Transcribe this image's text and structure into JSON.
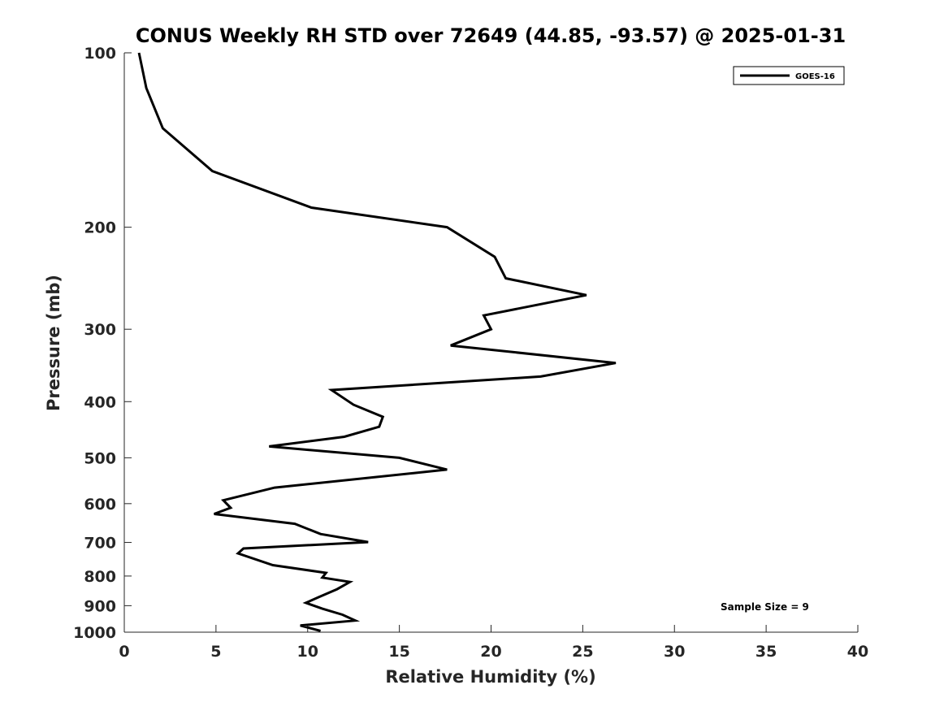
{
  "chart_data": {
    "type": "line",
    "title": "CONUS Weekly RH STD over 72649 (44.85, -93.57) @ 2025-01-31",
    "xlabel": "Relative Humidity (%)",
    "ylabel": "Pressure (mb)",
    "xlim": [
      0,
      40
    ],
    "ylim": [
      100,
      1000
    ],
    "yscale": "log",
    "y_reversed": true,
    "xticks": [
      0,
      5,
      10,
      15,
      20,
      25,
      30,
      35,
      40
    ],
    "yticks": [
      100,
      200,
      300,
      400,
      500,
      600,
      700,
      800,
      900,
      1000
    ],
    "grid": false,
    "legend": {
      "location": "top-right",
      "entries": [
        "GOES-16"
      ]
    },
    "annotation": "Sample Size = 9",
    "series": [
      {
        "name": "GOES-16",
        "color": "#000000",
        "points": [
          [
            0.8,
            100
          ],
          [
            1.2,
            115
          ],
          [
            2.1,
            135
          ],
          [
            4.8,
            160
          ],
          [
            10.2,
            185
          ],
          [
            17.6,
            200
          ],
          [
            20.2,
            225
          ],
          [
            20.8,
            245
          ],
          [
            25.2,
            262
          ],
          [
            19.6,
            284
          ],
          [
            20.0,
            300
          ],
          [
            17.8,
            320
          ],
          [
            26.8,
            343
          ],
          [
            22.7,
            362
          ],
          [
            11.3,
            382
          ],
          [
            12.5,
            405
          ],
          [
            14.1,
            425
          ],
          [
            13.9,
            442
          ],
          [
            12.0,
            460
          ],
          [
            7.9,
            478
          ],
          [
            15.0,
            500
          ],
          [
            17.6,
            524
          ],
          [
            8.2,
            563
          ],
          [
            5.4,
            592
          ],
          [
            5.8,
            610
          ],
          [
            4.9,
            625
          ],
          [
            9.3,
            650
          ],
          [
            10.7,
            677
          ],
          [
            13.3,
            699
          ],
          [
            6.5,
            717
          ],
          [
            6.2,
            731
          ],
          [
            8.1,
            766
          ],
          [
            11.0,
            790
          ],
          [
            10.8,
            805
          ],
          [
            12.3,
            819
          ],
          [
            11.6,
            843
          ],
          [
            10.6,
            870
          ],
          [
            9.9,
            890
          ],
          [
            10.8,
            911
          ],
          [
            11.9,
            933
          ],
          [
            12.6,
            955
          ],
          [
            9.6,
            974
          ],
          [
            10.7,
            995
          ]
        ]
      }
    ]
  }
}
